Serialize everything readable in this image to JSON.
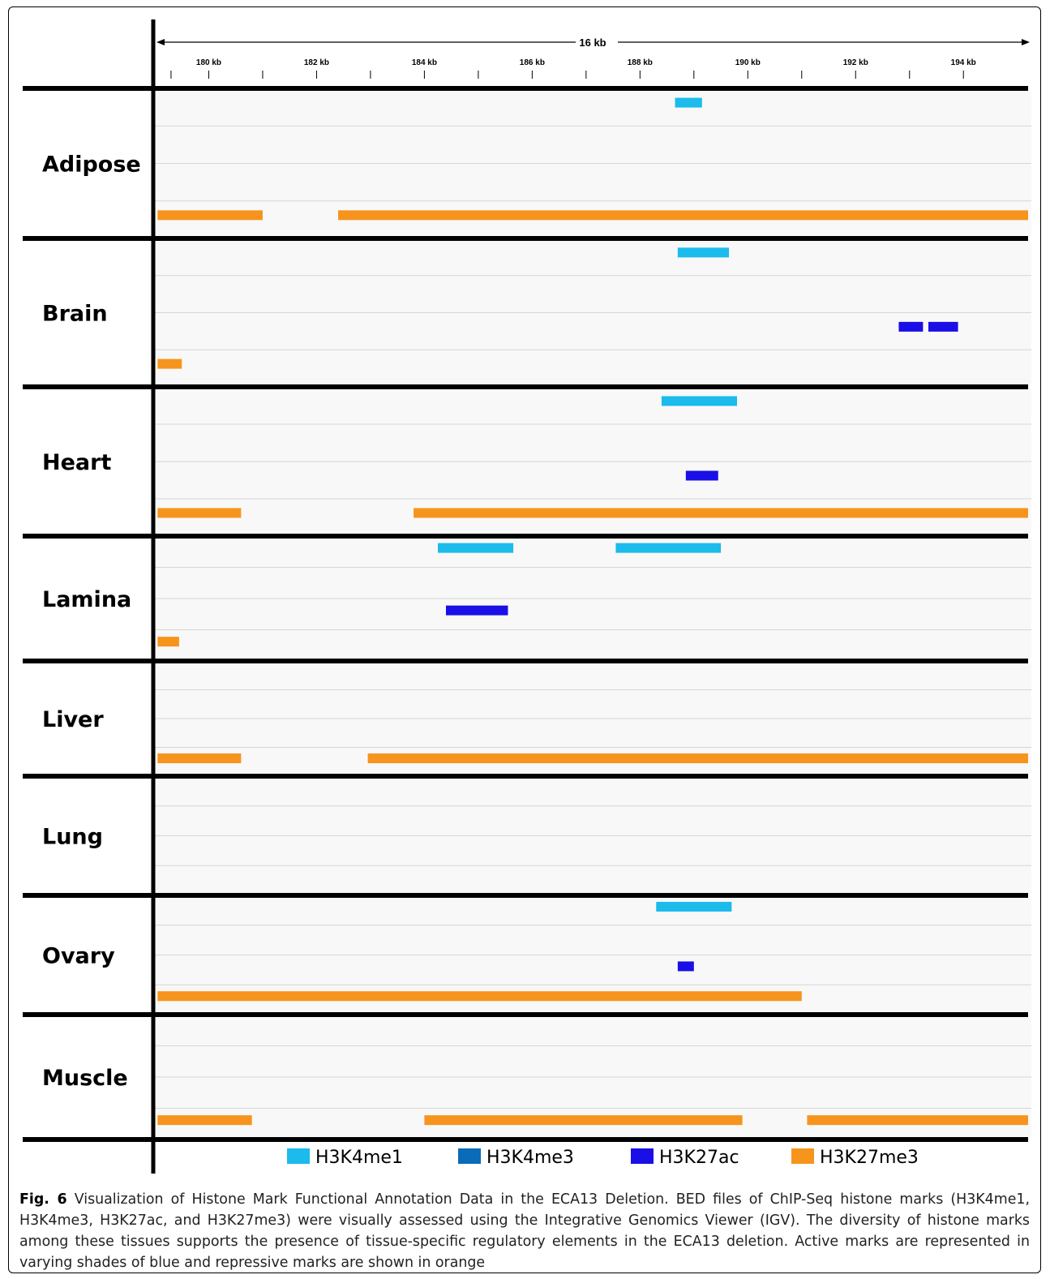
{
  "chart_data": {
    "type": "genome-track",
    "scale_label": "16 kb",
    "xlim": [
      179.0,
      195.2
    ],
    "ticks": [
      {
        "value": 180,
        "label": "180 kb"
      },
      {
        "value": 182,
        "label": "182 kb"
      },
      {
        "value": 184,
        "label": "184 kb"
      },
      {
        "value": 186,
        "label": "186 kb"
      },
      {
        "value": 188,
        "label": "188 kb"
      },
      {
        "value": 190,
        "label": "190 kb"
      },
      {
        "value": 192,
        "label": "192 kb"
      },
      {
        "value": 194,
        "label": "194 kb"
      }
    ],
    "minor_ticks": [
      179.3,
      181,
      183,
      185,
      187,
      189,
      191,
      193
    ],
    "legend": [
      {
        "mark": "H3K4me1",
        "color": "#1bbbec"
      },
      {
        "mark": "H3K4me3",
        "color": "#0a6bb8"
      },
      {
        "mark": "H3K27ac",
        "color": "#1a0fe6"
      },
      {
        "mark": "H3K27me3",
        "color": "#f7941d"
      }
    ],
    "tissues": [
      {
        "name": "Adipose",
        "marks": {
          "H3K4me1": [
            [
              188.65,
              189.15
            ]
          ],
          "H3K4me3": [],
          "H3K27ac": [],
          "H3K27me3": [
            [
              179.05,
              181.0
            ],
            [
              182.4,
              195.2
            ]
          ]
        }
      },
      {
        "name": "Brain",
        "marks": {
          "H3K4me1": [
            [
              188.7,
              189.65
            ]
          ],
          "H3K4me3": [],
          "H3K27ac": [
            [
              192.8,
              193.25
            ],
            [
              193.35,
              193.9
            ]
          ],
          "H3K27me3": [
            [
              179.05,
              179.5
            ]
          ]
        }
      },
      {
        "name": "Heart",
        "marks": {
          "H3K4me1": [
            [
              188.4,
              189.8
            ]
          ],
          "H3K4me3": [],
          "H3K27ac": [
            [
              188.85,
              189.45
            ]
          ],
          "H3K27me3": [
            [
              179.05,
              180.6
            ],
            [
              183.8,
              195.2
            ]
          ]
        }
      },
      {
        "name": "Lamina",
        "marks": {
          "H3K4me1": [
            [
              184.25,
              185.65
            ],
            [
              187.55,
              189.5
            ]
          ],
          "H3K4me3": [],
          "H3K27ac": [
            [
              184.4,
              185.55
            ]
          ],
          "H3K27me3": [
            [
              179.05,
              179.45
            ]
          ]
        }
      },
      {
        "name": "Liver",
        "marks": {
          "H3K4me1": [],
          "H3K4me3": [],
          "H3K27ac": [],
          "H3K27me3": [
            [
              179.05,
              180.6
            ],
            [
              182.95,
              195.2
            ]
          ]
        }
      },
      {
        "name": "Lung",
        "marks": {
          "H3K4me1": [],
          "H3K4me3": [],
          "H3K27ac": [],
          "H3K27me3": []
        }
      },
      {
        "name": "Ovary",
        "marks": {
          "H3K4me1": [
            [
              188.3,
              189.7
            ]
          ],
          "H3K4me3": [],
          "H3K27ac": [
            [
              188.7,
              189.0
            ]
          ],
          "H3K27me3": [
            [
              179.05,
              191.0
            ]
          ]
        }
      },
      {
        "name": "Muscle",
        "marks": {
          "H3K4me1": [],
          "H3K4me3": [],
          "H3K27ac": [],
          "H3K27me3": [
            [
              179.05,
              180.8
            ],
            [
              184.0,
              189.9
            ],
            [
              191.1,
              195.2
            ]
          ]
        }
      }
    ]
  },
  "caption": {
    "label": "Fig. 6",
    "text": " Visualization of Histone Mark Functional Annotation Data in the ECA13 Deletion. BED files of ChIP-Seq histone marks (H3K4me1, H3K4me3, H3K27ac, and H3K27me3) were visually assessed using the Integrative Genomics Viewer (IGV). The diversity of histone marks among these tissues supports the presence of tissue-specific regulatory elements in the ECA13 deletion. Active marks are represented in varying shades of blue and repressive marks are shown in orange"
  }
}
